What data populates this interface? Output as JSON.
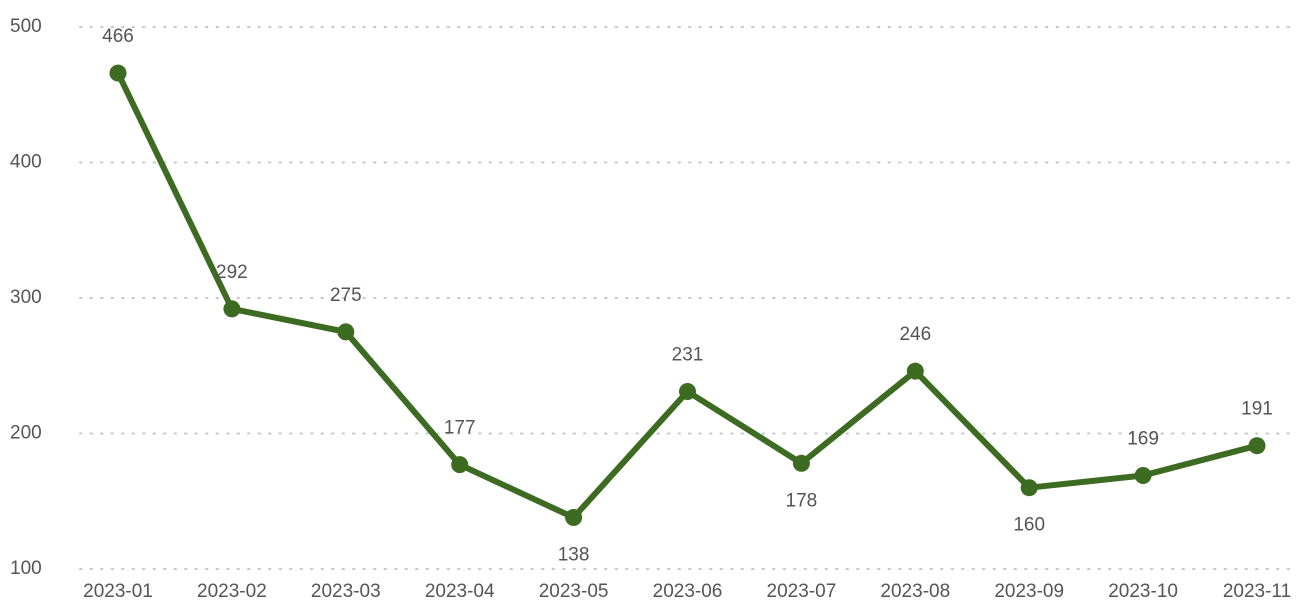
{
  "chart_data": {
    "type": "line",
    "categories": [
      "2023-01",
      "2023-02",
      "2023-03",
      "2023-04",
      "2023-05",
      "2023-06",
      "2023-07",
      "2023-08",
      "2023-09",
      "2023-10",
      "2023-11"
    ],
    "values": [
      466,
      292,
      275,
      177,
      138,
      231,
      178,
      246,
      160,
      169,
      191
    ],
    "color": "#3d6b21",
    "ylim": [
      100,
      500
    ],
    "yticks": [
      100,
      200,
      300,
      400,
      500
    ],
    "grid": true
  }
}
